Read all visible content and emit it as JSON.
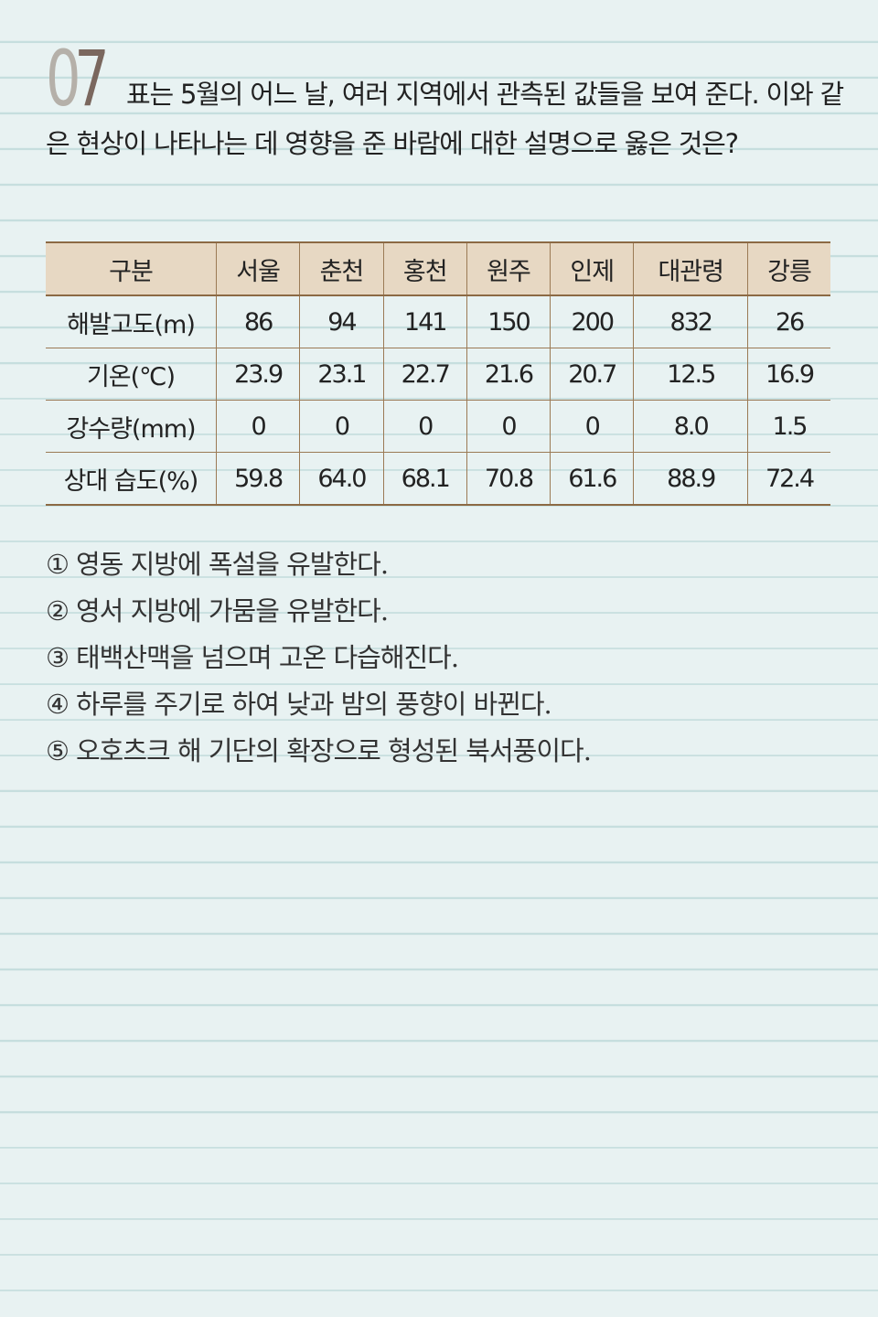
{
  "question": {
    "number_first": "0",
    "number_second": "7",
    "text": "표는 5월의 어느 날, 여러 지역에서 관측된 값들을 보여 준다. 이와 같은 현상이 나타나는 데 영향을 준 바람에 대한 설명으로 옳은 것은?"
  },
  "table": {
    "header": [
      "구분",
      "서울",
      "춘천",
      "홍천",
      "원주",
      "인제",
      "대관령",
      "강릉"
    ],
    "rows": [
      {
        "label": "해발고도(m)",
        "values": [
          "86",
          "94",
          "141",
          "150",
          "200",
          "832",
          "26"
        ]
      },
      {
        "label": "기온(℃)",
        "values": [
          "23.9",
          "23.1",
          "22.7",
          "21.6",
          "20.7",
          "12.5",
          "16.9"
        ]
      },
      {
        "label": "강수량(mm)",
        "values": [
          "0",
          "0",
          "0",
          "0",
          "0",
          "8.0",
          "1.5"
        ]
      },
      {
        "label": "상대 습도(%)",
        "values": [
          "59.8",
          "64.0",
          "68.1",
          "70.8",
          "61.6",
          "88.9",
          "72.4"
        ]
      }
    ]
  },
  "choices": [
    {
      "mark": "①",
      "text": "영동 지방에 폭설을 유발한다."
    },
    {
      "mark": "②",
      "text": "영서 지방에 가뭄을 유발한다."
    },
    {
      "mark": "③",
      "text": "태백산맥을 넘으며 고온 다습해진다."
    },
    {
      "mark": "④",
      "text": "하루를 주기로 하여 낮과 밤의 풍향이 바뀐다."
    },
    {
      "mark": "⑤",
      "text": "오호츠크 해 기단의 확장으로 형성된 북서풍이다."
    }
  ],
  "colors": {
    "background": "#e8f2f2",
    "ruled_line": "#c6dede",
    "table_header_fill": "#e7d8c3",
    "table_border": "#9b7a55",
    "number_first_digit": "#b5b0a9",
    "number_second_digit": "#7a675e"
  }
}
